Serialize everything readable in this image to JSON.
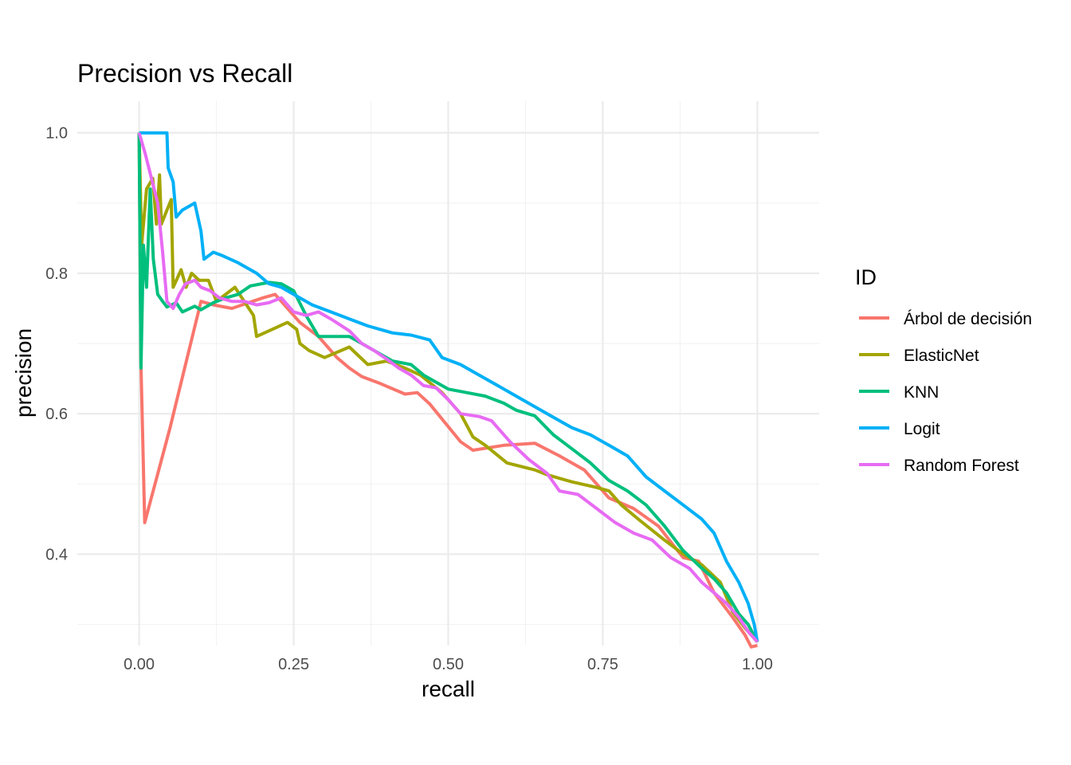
{
  "chart_data": {
    "type": "line",
    "title": "Precision vs Recall",
    "xlabel": "recall",
    "ylabel": "precision",
    "xlim": [
      -0.1,
      1.1
    ],
    "ylim": [
      0.27,
      1.045
    ],
    "xticks": [
      "0.00",
      "0.25",
      "0.50",
      "0.75",
      "1.00"
    ],
    "yticks": [
      "0.4",
      "0.6",
      "0.8",
      "1.0"
    ],
    "grid": true,
    "legend": {
      "title": "ID",
      "position": "right"
    },
    "series": [
      {
        "name": "Árbol de decisión",
        "color": "#F8766D",
        "points": [
          [
            0.0,
            1.0
          ],
          [
            0.003,
            0.67
          ],
          [
            0.009,
            0.445
          ],
          [
            0.05,
            0.58
          ],
          [
            0.1,
            0.76
          ],
          [
            0.12,
            0.755
          ],
          [
            0.15,
            0.75
          ],
          [
            0.2,
            0.765
          ],
          [
            0.22,
            0.77
          ],
          [
            0.26,
            0.73
          ],
          [
            0.29,
            0.71
          ],
          [
            0.32,
            0.68
          ],
          [
            0.34,
            0.665
          ],
          [
            0.36,
            0.653
          ],
          [
            0.39,
            0.643
          ],
          [
            0.43,
            0.628
          ],
          [
            0.45,
            0.63
          ],
          [
            0.47,
            0.614
          ],
          [
            0.52,
            0.56
          ],
          [
            0.54,
            0.548
          ],
          [
            0.59,
            0.555
          ],
          [
            0.64,
            0.558
          ],
          [
            0.68,
            0.54
          ],
          [
            0.72,
            0.52
          ],
          [
            0.76,
            0.48
          ],
          [
            0.8,
            0.465
          ],
          [
            0.84,
            0.44
          ],
          [
            0.88,
            0.395
          ],
          [
            0.905,
            0.39
          ],
          [
            0.93,
            0.345
          ],
          [
            0.96,
            0.31
          ],
          [
            0.98,
            0.285
          ],
          [
            0.99,
            0.268
          ],
          [
            1.0,
            0.27
          ]
        ]
      },
      {
        "name": "ElasticNet",
        "color": "#A3A500",
        "points": [
          [
            0.0,
            1.0
          ],
          [
            0.004,
            0.84
          ],
          [
            0.012,
            0.92
          ],
          [
            0.022,
            0.935
          ],
          [
            0.028,
            0.87
          ],
          [
            0.033,
            0.94
          ],
          [
            0.036,
            0.87
          ],
          [
            0.045,
            0.89
          ],
          [
            0.052,
            0.905
          ],
          [
            0.055,
            0.78
          ],
          [
            0.068,
            0.805
          ],
          [
            0.076,
            0.78
          ],
          [
            0.085,
            0.8
          ],
          [
            0.097,
            0.79
          ],
          [
            0.112,
            0.79
          ],
          [
            0.125,
            0.76
          ],
          [
            0.155,
            0.78
          ],
          [
            0.185,
            0.74
          ],
          [
            0.19,
            0.71
          ],
          [
            0.215,
            0.72
          ],
          [
            0.24,
            0.73
          ],
          [
            0.255,
            0.72
          ],
          [
            0.26,
            0.7
          ],
          [
            0.275,
            0.69
          ],
          [
            0.3,
            0.68
          ],
          [
            0.34,
            0.695
          ],
          [
            0.37,
            0.67
          ],
          [
            0.4,
            0.675
          ],
          [
            0.43,
            0.665
          ],
          [
            0.455,
            0.655
          ],
          [
            0.49,
            0.63
          ],
          [
            0.52,
            0.6
          ],
          [
            0.54,
            0.567
          ],
          [
            0.56,
            0.555
          ],
          [
            0.595,
            0.53
          ],
          [
            0.64,
            0.52
          ],
          [
            0.66,
            0.513
          ],
          [
            0.7,
            0.503
          ],
          [
            0.74,
            0.495
          ],
          [
            0.76,
            0.49
          ],
          [
            0.78,
            0.47
          ],
          [
            0.81,
            0.448
          ],
          [
            0.85,
            0.42
          ],
          [
            0.88,
            0.4
          ],
          [
            0.91,
            0.385
          ],
          [
            0.94,
            0.36
          ],
          [
            0.96,
            0.318
          ],
          [
            0.98,
            0.295
          ],
          [
            1.0,
            0.275
          ]
        ]
      },
      {
        "name": "KNN",
        "color": "#00BF7D",
        "points": [
          [
            0.0,
            1.0
          ],
          [
            0.003,
            0.665
          ],
          [
            0.007,
            0.84
          ],
          [
            0.012,
            0.78
          ],
          [
            0.018,
            0.92
          ],
          [
            0.023,
            0.82
          ],
          [
            0.03,
            0.77
          ],
          [
            0.038,
            0.76
          ],
          [
            0.045,
            0.752
          ],
          [
            0.06,
            0.758
          ],
          [
            0.07,
            0.745
          ],
          [
            0.09,
            0.753
          ],
          [
            0.1,
            0.748
          ],
          [
            0.12,
            0.758
          ],
          [
            0.14,
            0.765
          ],
          [
            0.16,
            0.77
          ],
          [
            0.18,
            0.782
          ],
          [
            0.21,
            0.787
          ],
          [
            0.23,
            0.785
          ],
          [
            0.25,
            0.775
          ],
          [
            0.27,
            0.74
          ],
          [
            0.29,
            0.71
          ],
          [
            0.31,
            0.71
          ],
          [
            0.34,
            0.71
          ],
          [
            0.36,
            0.7
          ],
          [
            0.39,
            0.685
          ],
          [
            0.41,
            0.675
          ],
          [
            0.44,
            0.67
          ],
          [
            0.46,
            0.655
          ],
          [
            0.48,
            0.645
          ],
          [
            0.5,
            0.635
          ],
          [
            0.53,
            0.63
          ],
          [
            0.56,
            0.625
          ],
          [
            0.59,
            0.615
          ],
          [
            0.61,
            0.605
          ],
          [
            0.64,
            0.597
          ],
          [
            0.67,
            0.57
          ],
          [
            0.7,
            0.55
          ],
          [
            0.73,
            0.53
          ],
          [
            0.76,
            0.505
          ],
          [
            0.79,
            0.49
          ],
          [
            0.82,
            0.47
          ],
          [
            0.85,
            0.44
          ],
          [
            0.88,
            0.405
          ],
          [
            0.91,
            0.38
          ],
          [
            0.93,
            0.365
          ],
          [
            0.95,
            0.345
          ],
          [
            0.97,
            0.315
          ],
          [
            0.985,
            0.3
          ],
          [
            1.0,
            0.275
          ]
        ]
      },
      {
        "name": "Logit",
        "color": "#00B0F6",
        "points": [
          [
            0.0,
            1.0
          ],
          [
            0.045,
            1.0
          ],
          [
            0.047,
            0.95
          ],
          [
            0.055,
            0.93
          ],
          [
            0.06,
            0.88
          ],
          [
            0.07,
            0.89
          ],
          [
            0.09,
            0.9
          ],
          [
            0.1,
            0.86
          ],
          [
            0.105,
            0.82
          ],
          [
            0.12,
            0.83
          ],
          [
            0.135,
            0.825
          ],
          [
            0.16,
            0.815
          ],
          [
            0.19,
            0.8
          ],
          [
            0.21,
            0.785
          ],
          [
            0.23,
            0.78
          ],
          [
            0.25,
            0.77
          ],
          [
            0.28,
            0.755
          ],
          [
            0.31,
            0.745
          ],
          [
            0.34,
            0.735
          ],
          [
            0.37,
            0.725
          ],
          [
            0.39,
            0.72
          ],
          [
            0.41,
            0.715
          ],
          [
            0.44,
            0.712
          ],
          [
            0.47,
            0.705
          ],
          [
            0.49,
            0.68
          ],
          [
            0.52,
            0.67
          ],
          [
            0.55,
            0.655
          ],
          [
            0.58,
            0.64
          ],
          [
            0.61,
            0.625
          ],
          [
            0.64,
            0.61
          ],
          [
            0.67,
            0.595
          ],
          [
            0.7,
            0.58
          ],
          [
            0.73,
            0.57
          ],
          [
            0.76,
            0.555
          ],
          [
            0.79,
            0.54
          ],
          [
            0.82,
            0.51
          ],
          [
            0.85,
            0.49
          ],
          [
            0.88,
            0.47
          ],
          [
            0.91,
            0.45
          ],
          [
            0.93,
            0.43
          ],
          [
            0.95,
            0.39
          ],
          [
            0.97,
            0.36
          ],
          [
            0.985,
            0.33
          ],
          [
            0.995,
            0.3
          ],
          [
            1.0,
            0.275
          ]
        ]
      },
      {
        "name": "Random Forest",
        "color": "#E76BF3",
        "points": [
          [
            0.0,
            1.0
          ],
          [
            0.01,
            0.97
          ],
          [
            0.03,
            0.9
          ],
          [
            0.038,
            0.83
          ],
          [
            0.045,
            0.76
          ],
          [
            0.055,
            0.75
          ],
          [
            0.065,
            0.77
          ],
          [
            0.075,
            0.785
          ],
          [
            0.09,
            0.79
          ],
          [
            0.1,
            0.78
          ],
          [
            0.115,
            0.775
          ],
          [
            0.13,
            0.765
          ],
          [
            0.15,
            0.76
          ],
          [
            0.17,
            0.76
          ],
          [
            0.19,
            0.755
          ],
          [
            0.21,
            0.758
          ],
          [
            0.23,
            0.765
          ],
          [
            0.25,
            0.745
          ],
          [
            0.27,
            0.74
          ],
          [
            0.29,
            0.745
          ],
          [
            0.31,
            0.735
          ],
          [
            0.34,
            0.718
          ],
          [
            0.36,
            0.7
          ],
          [
            0.38,
            0.69
          ],
          [
            0.4,
            0.678
          ],
          [
            0.42,
            0.665
          ],
          [
            0.44,
            0.655
          ],
          [
            0.46,
            0.64
          ],
          [
            0.48,
            0.637
          ],
          [
            0.5,
            0.62
          ],
          [
            0.52,
            0.6
          ],
          [
            0.55,
            0.596
          ],
          [
            0.57,
            0.59
          ],
          [
            0.6,
            0.56
          ],
          [
            0.63,
            0.535
          ],
          [
            0.66,
            0.515
          ],
          [
            0.68,
            0.49
          ],
          [
            0.71,
            0.485
          ],
          [
            0.74,
            0.465
          ],
          [
            0.77,
            0.445
          ],
          [
            0.8,
            0.43
          ],
          [
            0.83,
            0.42
          ],
          [
            0.86,
            0.395
          ],
          [
            0.89,
            0.38
          ],
          [
            0.91,
            0.36
          ],
          [
            0.93,
            0.345
          ],
          [
            0.95,
            0.33
          ],
          [
            0.97,
            0.31
          ],
          [
            0.985,
            0.29
          ],
          [
            1.0,
            0.275
          ]
        ]
      }
    ]
  }
}
